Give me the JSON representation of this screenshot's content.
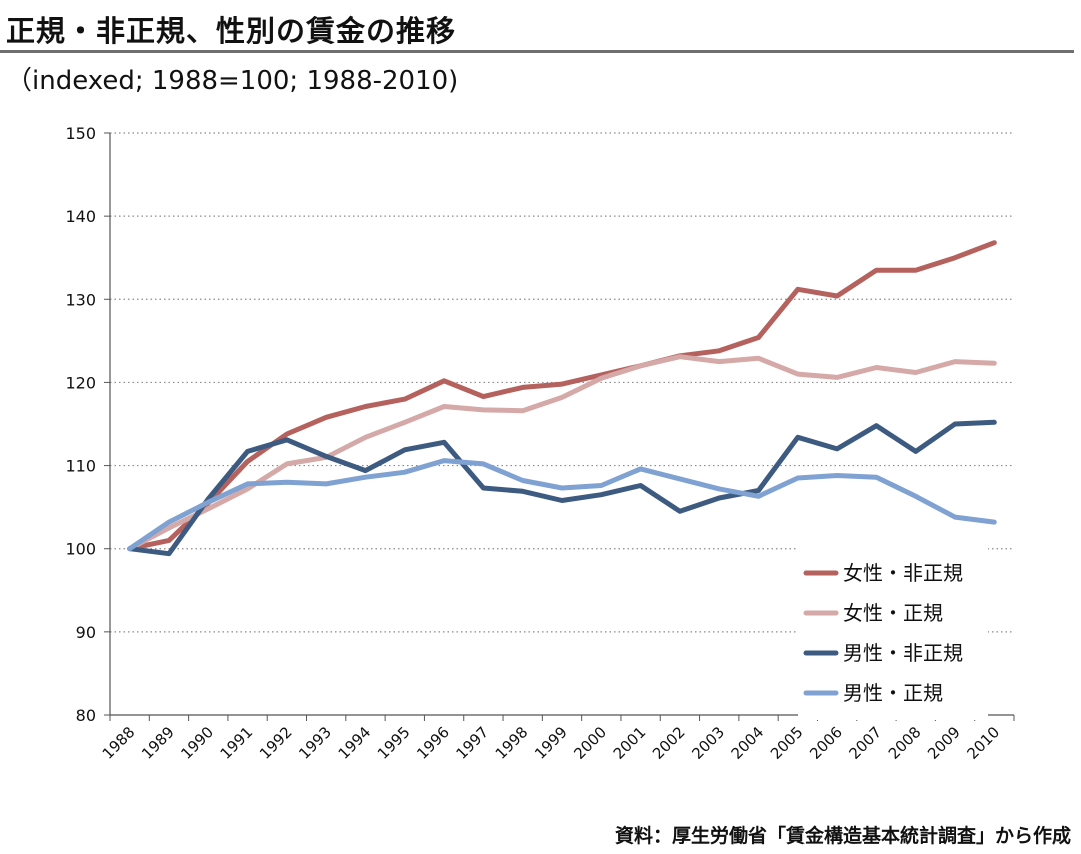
{
  "title": "正規・非正規、性別の賃金の推移",
  "subtitle": "（indexed; 1988=100; 1988-2010)",
  "source": "資料：厚生労働省「賃金構造基本統計調査」から作成",
  "chart_data": {
    "type": "line",
    "title": "正規・非正規、性別の賃金の推移",
    "subtitle": "（indexed; 1988=100; 1988-2010)",
    "xlabel": "",
    "ylabel": "",
    "x": [
      "1988",
      "1989",
      "1990",
      "1991",
      "1992",
      "1993",
      "1994",
      "1995",
      "1996",
      "1997",
      "1998",
      "1999",
      "2000",
      "2001",
      "2002",
      "2003",
      "2004",
      "2005",
      "2006",
      "2007",
      "2008",
      "2009",
      "2010"
    ],
    "ylim": [
      80,
      150
    ],
    "yticks": [
      80,
      90,
      100,
      110,
      120,
      130,
      140,
      150
    ],
    "grid": "horizontal dotted",
    "legend_position": "bottom-right",
    "series": [
      {
        "name": "女性・非正規",
        "color": "#b5625e",
        "values": [
          100,
          101.0,
          105.5,
          110.5,
          113.8,
          115.8,
          117.1,
          118.0,
          120.2,
          118.3,
          119.4,
          119.8,
          120.9,
          122.0,
          123.2,
          123.8,
          125.4,
          131.2,
          130.4,
          133.5,
          133.5,
          135.0,
          136.8
        ]
      },
      {
        "name": "女性・正規",
        "color": "#d5a9a7",
        "values": [
          100,
          102.5,
          104.8,
          107.2,
          110.2,
          111.0,
          113.4,
          115.2,
          117.1,
          116.7,
          116.6,
          118.2,
          120.5,
          122.0,
          123.1,
          122.5,
          122.9,
          121.0,
          120.6,
          121.8,
          121.2,
          122.5,
          122.3
        ]
      },
      {
        "name": "男性・非正規",
        "color": "#3d5a80",
        "values": [
          100,
          99.4,
          106.0,
          111.7,
          113.1,
          111.1,
          109.4,
          111.9,
          112.8,
          107.3,
          106.9,
          105.8,
          106.5,
          107.6,
          104.5,
          106.1,
          107.0,
          113.4,
          112.0,
          114.8,
          111.7,
          115.0,
          115.2
        ]
      },
      {
        "name": "男性・正規",
        "color": "#7fa2d3",
        "values": [
          100,
          103.2,
          105.6,
          107.8,
          108.0,
          107.8,
          108.6,
          109.2,
          110.6,
          110.2,
          108.2,
          107.3,
          107.6,
          109.6,
          108.4,
          107.2,
          106.3,
          108.5,
          108.8,
          108.6,
          106.3,
          103.8,
          103.2
        ]
      }
    ]
  }
}
